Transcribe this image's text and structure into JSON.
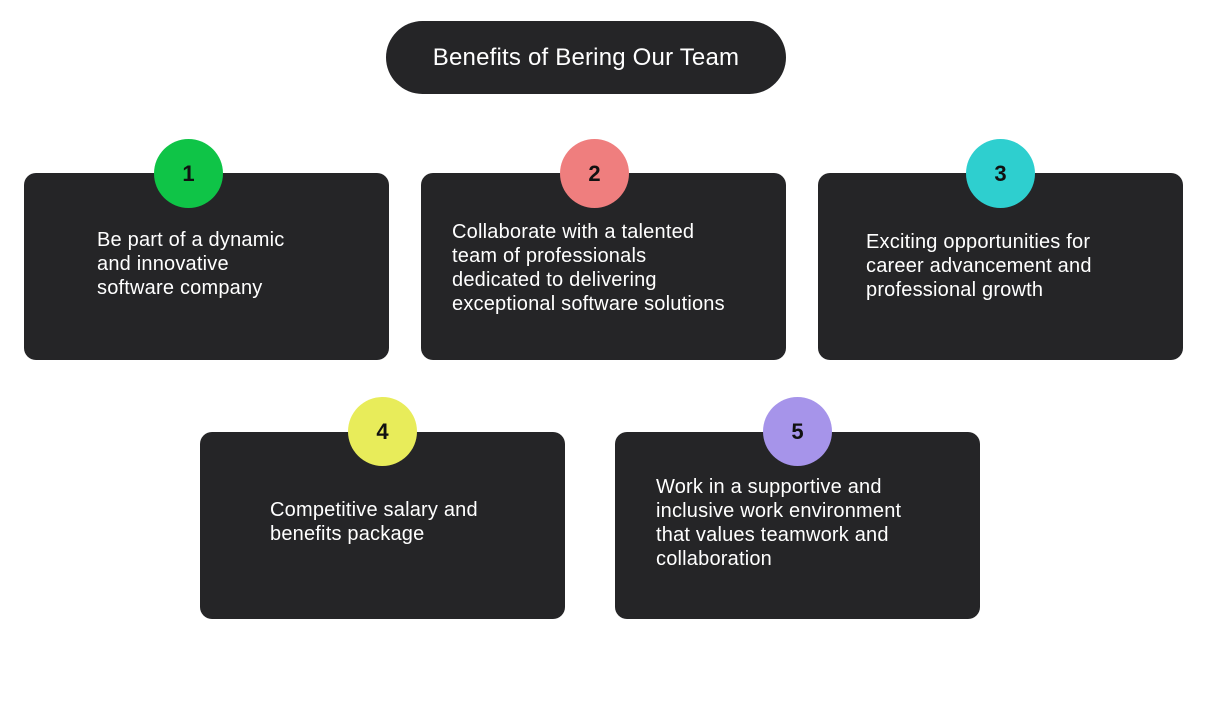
{
  "title": "Benefits of Bering Our Team",
  "benefits": [
    {
      "number": "1",
      "color": "#0fc447",
      "text": "Be part of a dynamic\nand innovative\nsoftware company"
    },
    {
      "number": "2",
      "color": "#ef7e7e",
      "text": "Collaborate with a talented\nteam of professionals\ndedicated to delivering\nexceptional software solutions"
    },
    {
      "number": "3",
      "color": "#2ecfcf",
      "text": "Exciting opportunities for\ncareer advancement and\nprofessional growth"
    },
    {
      "number": "4",
      "color": "#e8ec5a",
      "text": "Competitive salary and\nbenefits package"
    },
    {
      "number": "5",
      "color": "#a694ea",
      "text": "Work in a supportive and\ninclusive work environment\nthat values teamwork and\ncollaboration"
    }
  ]
}
